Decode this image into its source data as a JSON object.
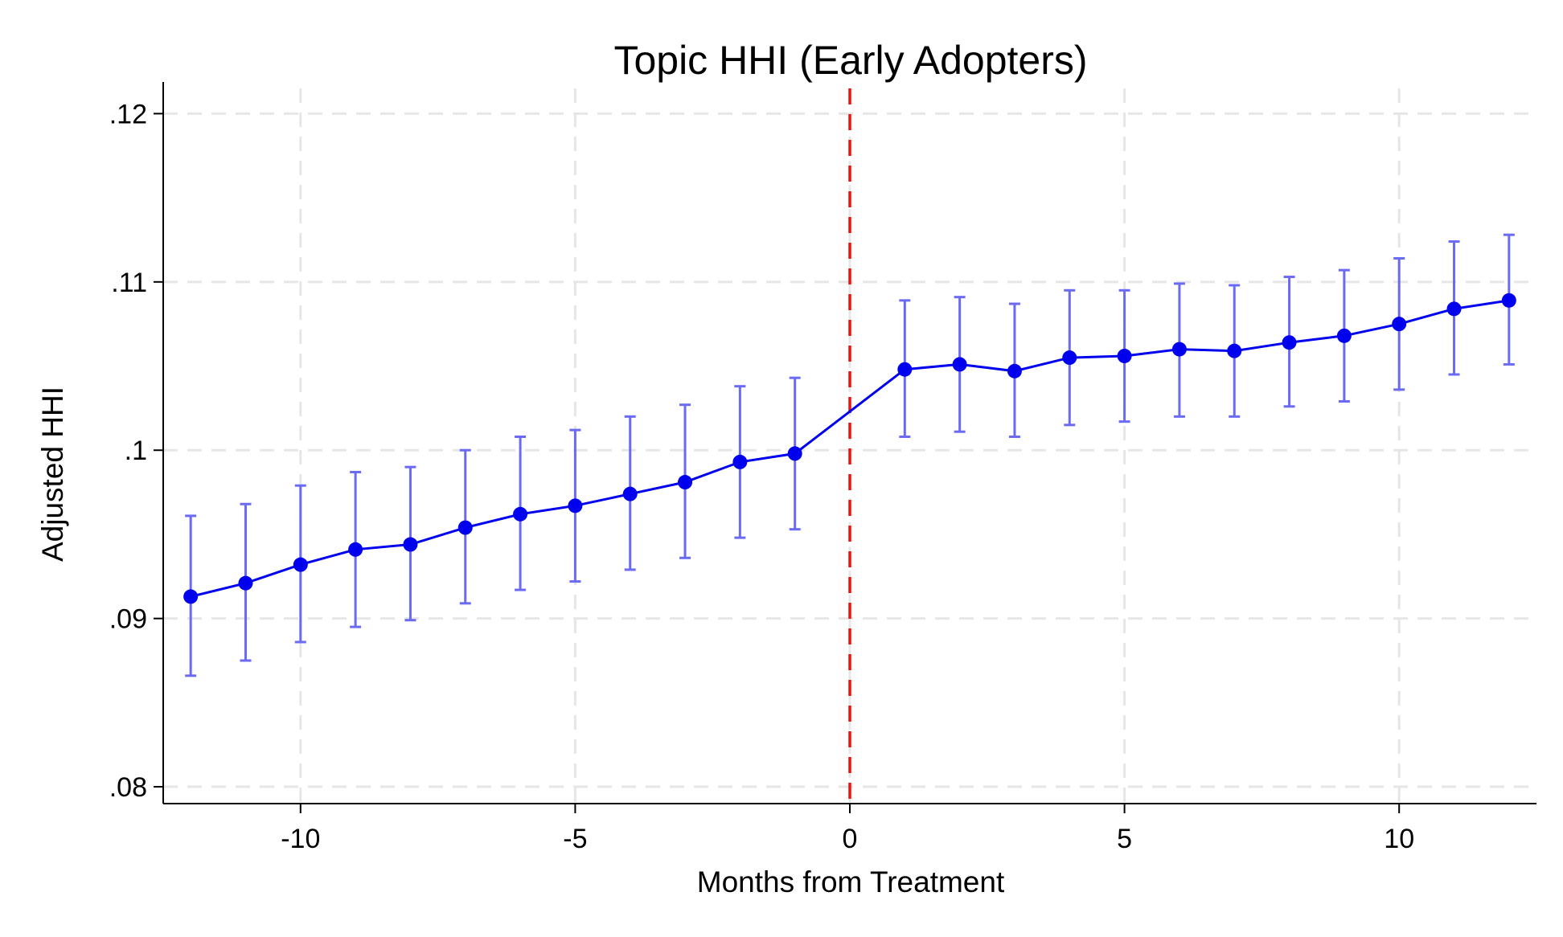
{
  "chart_data": {
    "type": "line",
    "title": "Topic HHI (Early Adopters)",
    "xlabel": "Months from Treatment",
    "ylabel": "Adjusted HHI",
    "xlim": [
      -12.5,
      12.5
    ],
    "ylim": [
      0.079,
      0.1215
    ],
    "x_ticks": [
      -10,
      -5,
      0,
      5,
      10
    ],
    "x_tick_labels": [
      "-10",
      "-5",
      "0",
      "5",
      "10"
    ],
    "y_ticks": [
      0.08,
      0.09,
      0.1,
      0.11,
      0.12
    ],
    "y_tick_labels": [
      ".08",
      ".09",
      ".1",
      ".11",
      ".12"
    ],
    "grid": true,
    "reference_line": {
      "x": 0,
      "style": "dashed",
      "color": "#ee1111"
    },
    "line_color": "#0000ee",
    "ci_color": "#6a6af5",
    "series": [
      {
        "x": [
          -12,
          -11,
          -10,
          -9,
          -8,
          -7,
          -6,
          -5,
          -4,
          -3,
          -2,
          -1,
          1,
          2,
          3,
          4,
          5,
          6,
          7,
          8,
          9,
          10,
          11,
          12
        ],
        "values": [
          0.0913,
          0.0921,
          0.0932,
          0.0941,
          0.0944,
          0.0954,
          0.0962,
          0.0967,
          0.0974,
          0.0981,
          0.0993,
          0.0998,
          0.1048,
          0.1051,
          0.1047,
          0.1055,
          0.1056,
          0.106,
          0.1059,
          0.1064,
          0.1068,
          0.1075,
          0.1084,
          0.1089
        ],
        "ci_lower": [
          0.0866,
          0.0875,
          0.0886,
          0.0895,
          0.0899,
          0.0909,
          0.0917,
          0.0922,
          0.0929,
          0.0936,
          0.0948,
          0.0953,
          0.1008,
          0.1011,
          0.1008,
          0.1015,
          0.1017,
          0.102,
          0.102,
          0.1026,
          0.1029,
          0.1036,
          0.1045,
          0.1051
        ],
        "ci_upper": [
          0.0961,
          0.0968,
          0.0979,
          0.0987,
          0.099,
          0.1,
          0.1008,
          0.1012,
          0.102,
          0.1027,
          0.1038,
          0.1043,
          0.1089,
          0.1091,
          0.1087,
          0.1095,
          0.1095,
          0.1099,
          0.1098,
          0.1103,
          0.1107,
          0.1114,
          0.1124,
          0.1128
        ]
      }
    ]
  }
}
